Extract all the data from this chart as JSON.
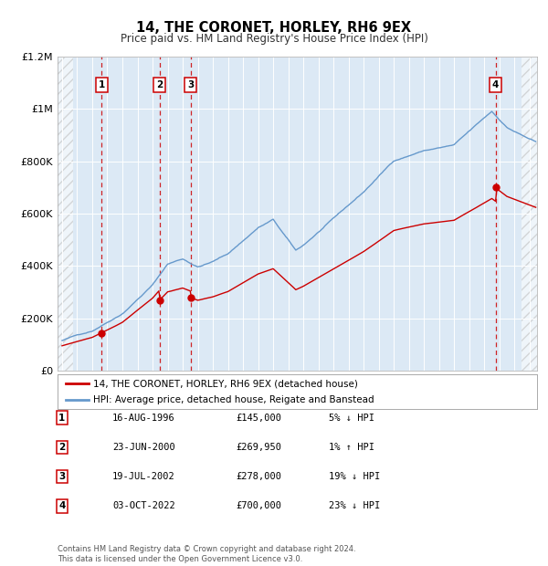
{
  "title": "14, THE CORONET, HORLEY, RH6 9EX",
  "subtitle": "Price paid vs. HM Land Registry's House Price Index (HPI)",
  "red_label": "14, THE CORONET, HORLEY, RH6 9EX (detached house)",
  "blue_label": "HPI: Average price, detached house, Reigate and Banstead",
  "transactions": [
    {
      "num": 1,
      "date_float": 1996.62,
      "price": 145000
    },
    {
      "num": 2,
      "date_float": 2000.47,
      "price": 269950
    },
    {
      "num": 3,
      "date_float": 2002.54,
      "price": 278000
    },
    {
      "num": 4,
      "date_float": 2022.75,
      "price": 700000
    }
  ],
  "table_rows": [
    {
      "num": 1,
      "date_str": "16-AUG-1996",
      "price_str": "£145,000",
      "note": "5% ↓ HPI"
    },
    {
      "num": 2,
      "date_str": "23-JUN-2000",
      "price_str": "£269,950",
      "note": "1% ↑ HPI"
    },
    {
      "num": 3,
      "date_str": "19-JUL-2002",
      "price_str": "£278,000",
      "note": "19% ↓ HPI"
    },
    {
      "num": 4,
      "date_str": "03-OCT-2022",
      "price_str": "£700,000",
      "note": "23% ↓ HPI"
    }
  ],
  "footer": "Contains HM Land Registry data © Crown copyright and database right 2024.\nThis data is licensed under the Open Government Licence v3.0.",
  "ylim": [
    0,
    1200000
  ],
  "yticks": [
    0,
    200000,
    400000,
    600000,
    800000,
    1000000,
    1200000
  ],
  "xlim_start": 1993.7,
  "xlim_end": 2025.5,
  "hatch_end": 1994.75,
  "hatch_start2": 2024.5,
  "bg_color": "#dce9f5",
  "red_color": "#cc0000",
  "blue_color": "#6699cc",
  "grid_color": "#ffffff",
  "dashed_color": "#cc0000"
}
